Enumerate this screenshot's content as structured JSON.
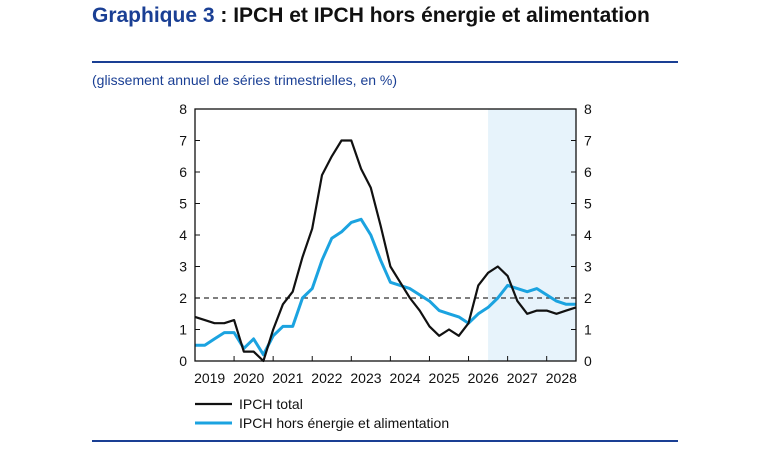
{
  "header": {
    "label": "Graphique 3",
    "separator": " : ",
    "title": "IPCH et IPCH hors énergie et alimentation",
    "subtitle": "(glissement annuel de séries trimestrielles, en %)"
  },
  "chart_data": {
    "type": "line",
    "title": "IPCH et IPCH hors énergie et alimentation",
    "subtitle": "(glissement annuel de séries trimestrielles, en %)",
    "ylim": [
      0,
      8
    ],
    "yticks": [
      0,
      1,
      2,
      3,
      4,
      5,
      6,
      7,
      8
    ],
    "ytick_labels": [
      "0",
      "1",
      "2",
      "3",
      "4",
      "5",
      "6",
      "7",
      "8"
    ],
    "xlim": [
      2019.0,
      2028.75
    ],
    "xtick_labels": [
      "2019",
      "2020",
      "2021",
      "2022",
      "2023",
      "2024",
      "2025",
      "2026",
      "2027",
      "2028"
    ],
    "xtick_years": [
      2019,
      2020,
      2021,
      2022,
      2023,
      2024,
      2025,
      2026,
      2027,
      2028
    ],
    "reference_line": 2,
    "projection_start": 2026.5,
    "grid": false,
    "legend_position": "bottom-left",
    "series": [
      {
        "name": "IPCH total",
        "color": "#111111",
        "x": [
          2019.0,
          2019.25,
          2019.5,
          2019.75,
          2020.0,
          2020.25,
          2020.5,
          2020.75,
          2021.0,
          2021.25,
          2021.5,
          2021.75,
          2022.0,
          2022.25,
          2022.5,
          2022.75,
          2023.0,
          2023.25,
          2023.5,
          2023.75,
          2024.0,
          2024.25,
          2024.5,
          2024.75,
          2025.0,
          2025.25,
          2025.5,
          2025.75,
          2026.0,
          2026.25,
          2026.5,
          2026.75,
          2027.0,
          2027.25,
          2027.5,
          2027.75,
          2028.0,
          2028.25,
          2028.5,
          2028.75
        ],
        "values": [
          1.4,
          1.3,
          1.2,
          1.2,
          1.3,
          0.3,
          0.3,
          0.0,
          1.0,
          1.8,
          2.2,
          3.3,
          4.2,
          5.9,
          6.5,
          7.0,
          7.0,
          6.1,
          5.5,
          4.3,
          3.0,
          2.5,
          2.0,
          1.6,
          1.1,
          0.8,
          1.0,
          0.8,
          1.2,
          2.4,
          2.8,
          3.0,
          2.7,
          1.9,
          1.5,
          1.6,
          1.6,
          1.5,
          1.6,
          1.7
        ]
      },
      {
        "name": "IPCH hors énergie et alimentation",
        "color": "#1ba3e0",
        "x": [
          2019.0,
          2019.25,
          2019.5,
          2019.75,
          2020.0,
          2020.25,
          2020.5,
          2020.75,
          2021.0,
          2021.25,
          2021.5,
          2021.75,
          2022.0,
          2022.25,
          2022.5,
          2022.75,
          2023.0,
          2023.25,
          2023.5,
          2023.75,
          2024.0,
          2024.25,
          2024.5,
          2024.75,
          2025.0,
          2025.25,
          2025.5,
          2025.75,
          2026.0,
          2026.25,
          2026.5,
          2026.75,
          2027.0,
          2027.25,
          2027.5,
          2027.75,
          2028.0,
          2028.25,
          2028.5,
          2028.75
        ],
        "values": [
          0.5,
          0.5,
          0.7,
          0.9,
          0.9,
          0.4,
          0.7,
          0.2,
          0.8,
          1.1,
          1.1,
          2.0,
          2.3,
          3.2,
          3.9,
          4.1,
          4.4,
          4.5,
          4.0,
          3.2,
          2.5,
          2.4,
          2.3,
          2.1,
          1.9,
          1.6,
          1.5,
          1.4,
          1.2,
          1.5,
          1.7,
          2.0,
          2.4,
          2.3,
          2.2,
          2.3,
          2.1,
          1.9,
          1.8,
          1.8
        ]
      }
    ]
  }
}
